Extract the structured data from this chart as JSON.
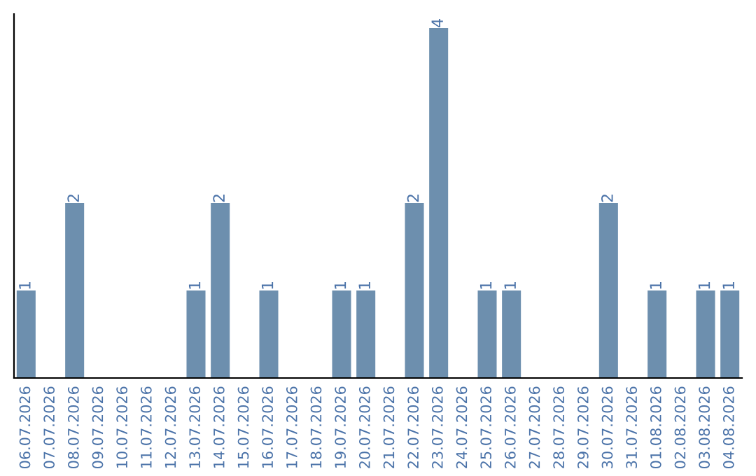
{
  "chart_data": {
    "type": "bar",
    "categories": [
      "06.07.2026",
      "07.07.2026",
      "08.07.2026",
      "09.07.2026",
      "10.07.2026",
      "11.07.2026",
      "12.07.2026",
      "13.07.2026",
      "14.07.2026",
      "15.07.2026",
      "16.07.2026",
      "17.07.2026",
      "18.07.2026",
      "19.07.2026",
      "20.07.2026",
      "21.07.2026",
      "22.07.2026",
      "23.07.2026",
      "24.07.2026",
      "25.07.2026",
      "26.07.2026",
      "27.07.2026",
      "28.07.2026",
      "29.07.2026",
      "30.07.2026",
      "31.07.2026",
      "01.08.2026",
      "02.08.2026",
      "03.08.2026",
      "04.08.2026"
    ],
    "values": [
      1,
      0,
      2,
      0,
      0,
      0,
      0,
      1,
      2,
      0,
      1,
      0,
      0,
      1,
      1,
      0,
      2,
      4,
      0,
      1,
      1,
      0,
      0,
      0,
      2,
      0,
      1,
      0,
      1,
      1
    ],
    "value_labels": [
      "1",
      null,
      "2",
      null,
      null,
      null,
      null,
      "1",
      "2",
      null,
      "1",
      null,
      null,
      "1",
      "1",
      null,
      "2",
      "4",
      null,
      "1",
      "1",
      null,
      null,
      null,
      "2",
      null,
      "1",
      null,
      "1",
      "1"
    ],
    "color": "#6d8fae",
    "grid": false,
    "legend": false
  }
}
